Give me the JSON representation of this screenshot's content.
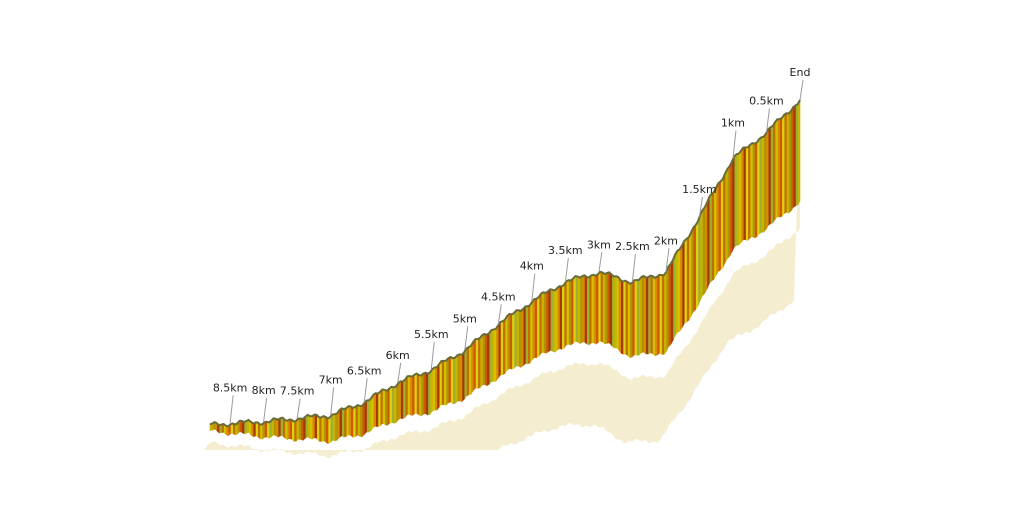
{
  "chart_data": {
    "type": "area",
    "subtype": "3d-elevation-profile",
    "x": [
      0,
      0.5,
      1,
      1.5,
      2,
      2.5,
      3,
      3.5,
      4,
      4.5,
      5,
      5.5,
      6,
      6.5,
      7,
      7.5,
      8,
      8.5,
      8.8
    ],
    "y": [
      100,
      90,
      82,
      64,
      47,
      44,
      47,
      44,
      38,
      31,
      23,
      17,
      13,
      7,
      3,
      2,
      1,
      0.5,
      0
    ],
    "markers": [
      {
        "label": "End",
        "x": 0
      },
      {
        "label": "0.5km",
        "x": 0.5
      },
      {
        "label": "1km",
        "x": 1
      },
      {
        "label": "1.5km",
        "x": 1.5
      },
      {
        "label": "2km",
        "x": 2
      },
      {
        "label": "2.5km",
        "x": 2.5
      },
      {
        "label": "3km",
        "x": 3
      },
      {
        "label": "3.5km",
        "x": 3.5
      },
      {
        "label": "4km",
        "x": 4
      },
      {
        "label": "4.5km",
        "x": 4.5
      },
      {
        "label": "5km",
        "x": 5
      },
      {
        "label": "5.5km",
        "x": 5.5
      },
      {
        "label": "6km",
        "x": 6
      },
      {
        "label": "6.5km",
        "x": 6.5
      },
      {
        "label": "7km",
        "x": 7
      },
      {
        "label": "7.5km",
        "x": 7.5
      },
      {
        "label": "8km",
        "x": 8
      },
      {
        "label": "8.5km",
        "x": 8.5
      }
    ],
    "colors": {
      "face_palette": [
        "#c9b400",
        "#d4c100",
        "#b39400",
        "#d98a00",
        "#cc5a00",
        "#a33b00",
        "#e0d010",
        "#9fb030",
        "#c07000"
      ],
      "top_edge": "#6b6b3a",
      "shadow": "#f2e9c4",
      "shadow_tint": "#f3d9cf"
    },
    "grid": false,
    "legend": "none"
  }
}
